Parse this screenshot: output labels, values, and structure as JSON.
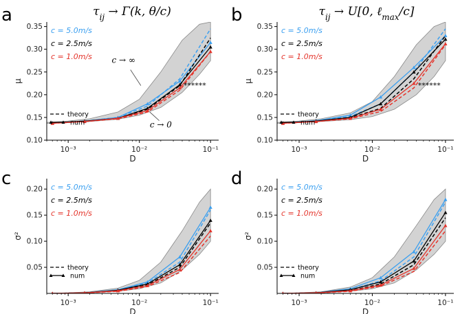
{
  "chart_data": [
    {
      "id": "a",
      "type": "line",
      "panel_label": "a",
      "title": "τ_ij → Γ(k, θ/c)",
      "xlabel": "D",
      "ylabel": "μ",
      "xscale": "log",
      "xlim": [
        0.0005,
        0.13
      ],
      "ylim": [
        0.1,
        0.36
      ],
      "xticks": [
        {
          "v": 0.001,
          "label": "10⁻³"
        },
        {
          "v": 0.01,
          "label": "10⁻²"
        },
        {
          "v": 0.1,
          "label": "10⁻¹"
        }
      ],
      "yticks": [
        {
          "v": 0.1,
          "label": "0.10"
        },
        {
          "v": 0.15,
          "label": "0.15"
        },
        {
          "v": 0.2,
          "label": "0.20"
        },
        {
          "v": 0.25,
          "label": "0.25"
        },
        {
          "v": 0.3,
          "label": "0.30"
        },
        {
          "v": 0.35,
          "label": "0.35"
        }
      ],
      "band": {
        "x": [
          0.0005,
          0.001,
          0.002,
          0.005,
          0.01,
          0.02,
          0.04,
          0.07,
          0.1
        ],
        "lower": [
          0.137,
          0.139,
          0.141,
          0.146,
          0.155,
          0.172,
          0.205,
          0.245,
          0.275
        ],
        "upper": [
          0.139,
          0.142,
          0.147,
          0.162,
          0.19,
          0.25,
          0.32,
          0.355,
          0.36
        ]
      },
      "series": [
        {
          "name": "c = 5.0m/s",
          "color": "#3a9ff0",
          "x": [
            0.0006,
            0.0017,
            0.005,
            0.013,
            0.037,
            0.1
          ],
          "theory": [
            0.138,
            0.142,
            0.15,
            0.175,
            0.235,
            0.345
          ],
          "num": [
            0.138,
            0.142,
            0.15,
            0.18,
            0.23,
            0.315
          ]
        },
        {
          "name": "c = 2.5m/s",
          "color": "#000000",
          "x": [
            0.0006,
            0.0017,
            0.005,
            0.013,
            0.037,
            0.1
          ],
          "theory": [
            0.138,
            0.141,
            0.148,
            0.168,
            0.22,
            0.325
          ],
          "num": [
            0.138,
            0.142,
            0.148,
            0.17,
            0.222,
            0.305
          ]
        },
        {
          "name": "c = 1.0m/s",
          "color": "#e4332a",
          "x": [
            0.0006,
            0.0017,
            0.005,
            0.013,
            0.037,
            0.1
          ],
          "theory": [
            0.137,
            0.141,
            0.147,
            0.162,
            0.21,
            0.295
          ],
          "num": [
            0.137,
            0.141,
            0.148,
            0.165,
            0.215,
            0.295
          ]
        }
      ],
      "legend_style": {
        "theory": "theory",
        "num": "num"
      },
      "annotations": [
        {
          "text": "c → ∞",
          "x": 0.006,
          "y": 0.27
        },
        {
          "text": "c → 0",
          "x": 0.02,
          "y": 0.128
        },
        {
          "text": "******",
          "x": 0.06,
          "y": 0.215
        }
      ]
    },
    {
      "id": "b",
      "type": "line",
      "panel_label": "b",
      "title": "τ_ij → U[0, ℓ_max/c]",
      "xlabel": "D",
      "ylabel": "μ",
      "xscale": "log",
      "xlim": [
        0.0005,
        0.13
      ],
      "ylim": [
        0.1,
        0.36
      ],
      "xticks": [
        {
          "v": 0.001,
          "label": "10⁻³"
        },
        {
          "v": 0.01,
          "label": "10⁻²"
        },
        {
          "v": 0.1,
          "label": "10⁻¹"
        }
      ],
      "yticks": [
        {
          "v": 0.1,
          "label": "0.10"
        },
        {
          "v": 0.15,
          "label": "0.15"
        },
        {
          "v": 0.2,
          "label": "0.20"
        },
        {
          "v": 0.25,
          "label": "0.25"
        },
        {
          "v": 0.3,
          "label": "0.30"
        },
        {
          "v": 0.35,
          "label": "0.35"
        }
      ],
      "band": {
        "x": [
          0.0005,
          0.001,
          0.002,
          0.005,
          0.01,
          0.02,
          0.04,
          0.07,
          0.1
        ],
        "lower": [
          0.137,
          0.139,
          0.141,
          0.145,
          0.152,
          0.168,
          0.2,
          0.24,
          0.275
        ],
        "upper": [
          0.139,
          0.142,
          0.147,
          0.16,
          0.185,
          0.24,
          0.31,
          0.35,
          0.36
        ]
      },
      "series": [
        {
          "name": "c = 5.0m/s",
          "color": "#3a9ff0",
          "x": [
            0.0006,
            0.0017,
            0.005,
            0.013,
            0.037,
            0.1
          ],
          "theory": [
            0.138,
            0.142,
            0.152,
            0.18,
            0.25,
            0.345
          ],
          "num": [
            0.138,
            0.143,
            0.155,
            0.195,
            0.26,
            0.33
          ]
        },
        {
          "name": "c = 2.5m/s",
          "color": "#000000",
          "x": [
            0.0006,
            0.0017,
            0.005,
            0.013,
            0.037,
            0.1
          ],
          "theory": [
            0.138,
            0.141,
            0.149,
            0.17,
            0.235,
            0.33
          ],
          "num": [
            0.138,
            0.142,
            0.15,
            0.18,
            0.25,
            0.322
          ]
        },
        {
          "name": "c = 1.0m/s",
          "color": "#e4332a",
          "x": [
            0.0006,
            0.0017,
            0.005,
            0.013,
            0.037,
            0.1
          ],
          "theory": [
            0.137,
            0.141,
            0.147,
            0.163,
            0.215,
            0.31
          ],
          "num": [
            0.137,
            0.141,
            0.148,
            0.168,
            0.225,
            0.312
          ]
        }
      ],
      "legend_style": {
        "theory": "theory",
        "num": "num"
      },
      "annotations": [
        {
          "text": "******",
          "x": 0.06,
          "y": 0.215
        }
      ]
    },
    {
      "id": "c",
      "type": "line",
      "panel_label": "c",
      "title": "",
      "xlabel": "D",
      "ylabel": "σ²",
      "xscale": "log",
      "xlim": [
        0.0005,
        0.13
      ],
      "ylim": [
        0.0,
        0.22
      ],
      "xticks": [
        {
          "v": 0.001,
          "label": "10⁻³"
        },
        {
          "v": 0.01,
          "label": "10⁻²"
        },
        {
          "v": 0.1,
          "label": "10⁻¹"
        }
      ],
      "yticks": [
        {
          "v": 0.05,
          "label": "0.05"
        },
        {
          "v": 0.1,
          "label": "0.10"
        },
        {
          "v": 0.15,
          "label": "0.15"
        },
        {
          "v": 0.2,
          "label": "0.20"
        }
      ],
      "band": {
        "x": [
          0.0005,
          0.001,
          0.002,
          0.005,
          0.01,
          0.02,
          0.04,
          0.07,
          0.1
        ],
        "lower": [
          0.0,
          0.0005,
          0.001,
          0.004,
          0.009,
          0.02,
          0.045,
          0.075,
          0.1
        ],
        "upper": [
          0.0,
          0.001,
          0.003,
          0.01,
          0.025,
          0.06,
          0.12,
          0.175,
          0.2
        ]
      },
      "series": [
        {
          "name": "c = 5.0m/s",
          "color": "#3a9ff0",
          "x": [
            0.0006,
            0.0017,
            0.005,
            0.013,
            0.037,
            0.1
          ],
          "theory": [
            0.0,
            0.001,
            0.006,
            0.02,
            0.06,
            0.16
          ],
          "num": [
            0.0,
            0.001,
            0.007,
            0.022,
            0.07,
            0.165
          ]
        },
        {
          "name": "c = 2.5m/s",
          "color": "#000000",
          "x": [
            0.0006,
            0.0017,
            0.005,
            0.013,
            0.037,
            0.1
          ],
          "theory": [
            0.0,
            0.001,
            0.005,
            0.016,
            0.05,
            0.135
          ],
          "num": [
            0.0,
            0.001,
            0.006,
            0.018,
            0.055,
            0.14
          ]
        },
        {
          "name": "c = 1.0m/s",
          "color": "#e4332a",
          "x": [
            0.0006,
            0.0017,
            0.005,
            0.013,
            0.037,
            0.1
          ],
          "theory": [
            0.0,
            0.0008,
            0.004,
            0.013,
            0.04,
            0.11
          ],
          "num": [
            0.0,
            0.001,
            0.005,
            0.015,
            0.046,
            0.12
          ]
        }
      ],
      "legend_style": {
        "theory": "theory",
        "num": "num"
      },
      "annotations": []
    },
    {
      "id": "d",
      "type": "line",
      "panel_label": "d",
      "title": "",
      "xlabel": "D",
      "ylabel": "σ²",
      "xscale": "log",
      "xlim": [
        0.0005,
        0.13
      ],
      "ylim": [
        0.0,
        0.22
      ],
      "xticks": [
        {
          "v": 0.001,
          "label": "10⁻³"
        },
        {
          "v": 0.01,
          "label": "10⁻²"
        },
        {
          "v": 0.1,
          "label": "10⁻¹"
        }
      ],
      "yticks": [
        {
          "v": 0.05,
          "label": "0.05"
        },
        {
          "v": 0.1,
          "label": "0.10"
        },
        {
          "v": 0.15,
          "label": "0.15"
        },
        {
          "v": 0.2,
          "label": "0.20"
        }
      ],
      "band": {
        "x": [
          0.0005,
          0.001,
          0.002,
          0.005,
          0.01,
          0.02,
          0.04,
          0.07,
          0.1
        ],
        "lower": [
          0.0,
          0.0005,
          0.001,
          0.004,
          0.009,
          0.02,
          0.045,
          0.075,
          0.1
        ],
        "upper": [
          0.0,
          0.001,
          0.003,
          0.012,
          0.03,
          0.07,
          0.13,
          0.18,
          0.2
        ]
      },
      "series": [
        {
          "name": "c = 5.0m/s",
          "color": "#3a9ff0",
          "x": [
            0.0006,
            0.0017,
            0.005,
            0.013,
            0.037,
            0.1
          ],
          "theory": [
            0.0,
            0.001,
            0.007,
            0.024,
            0.07,
            0.175
          ],
          "num": [
            0.0,
            0.001,
            0.009,
            0.03,
            0.08,
            0.18
          ]
        },
        {
          "name": "c = 2.5m/s",
          "color": "#000000",
          "x": [
            0.0006,
            0.0017,
            0.005,
            0.013,
            0.037,
            0.1
          ],
          "theory": [
            0.0,
            0.001,
            0.005,
            0.018,
            0.055,
            0.145
          ],
          "num": [
            0.0,
            0.001,
            0.007,
            0.022,
            0.062,
            0.155
          ]
        },
        {
          "name": "c = 1.0m/s",
          "color": "#e4332a",
          "x": [
            0.0006,
            0.0017,
            0.005,
            0.013,
            0.037,
            0.1
          ],
          "theory": [
            0.0,
            0.0008,
            0.004,
            0.014,
            0.042,
            0.12
          ],
          "num": [
            0.0,
            0.001,
            0.005,
            0.016,
            0.048,
            0.13
          ]
        }
      ],
      "legend_style": {
        "theory": "theory",
        "num": "num"
      },
      "annotations": []
    }
  ]
}
